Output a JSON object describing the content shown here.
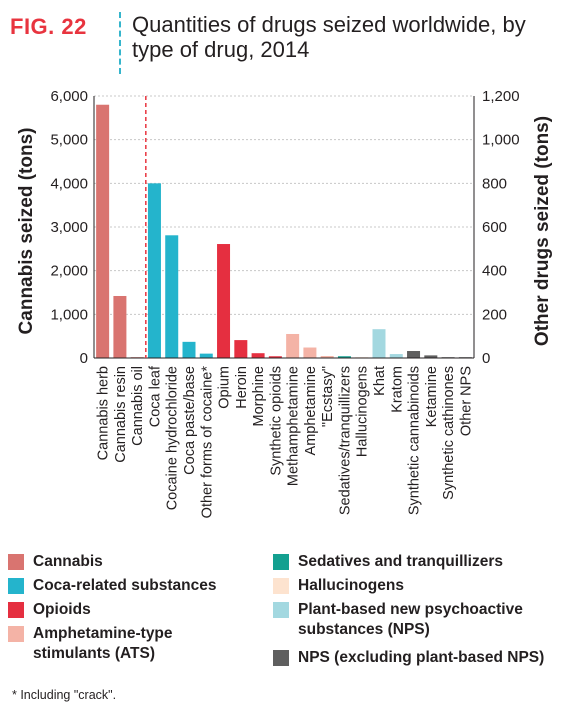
{
  "figure": {
    "label": "FIG. 22",
    "title": "Quantities of drugs seized worldwide, by type of drug, 2014"
  },
  "colors": {
    "Cannabis": "#d97470",
    "Coca-related substances": "#24b4cc",
    "Opioids": "#e52f40",
    "Amphetamine-type stimulants (ATS)": "#f4b3a6",
    "Sedatives and tranquillizers": "#13a090",
    "Hallucinogens": "#fde3cf",
    "Plant-based new psychoactive substances (NPS)": "#a3d8e0",
    "NPS (excluding plant-based NPS)": "#5f5f5f"
  },
  "legend": [
    {
      "label": "Cannabis",
      "group": "Cannabis"
    },
    {
      "label": "Coca-related substances",
      "group": "Coca-related substances"
    },
    {
      "label": "Opioids",
      "group": "Opioids"
    },
    {
      "label": "Amphetamine-type stimulants (ATS)",
      "group": "Amphetamine-type stimulants (ATS)"
    },
    {
      "label": "Sedatives and tranquillizers",
      "group": "Sedatives and tranquillizers"
    },
    {
      "label": "Hallucinogens",
      "group": "Hallucinogens"
    },
    {
      "label": "Plant-based new psychoactive substances (NPS)",
      "group": "Plant-based new psychoactive substances (NPS)"
    },
    {
      "label": "NPS (excluding plant-based NPS)",
      "group": "NPS (excluding plant-based NPS)"
    }
  ],
  "footnote": "* Including \"crack\".",
  "chart_data": {
    "type": "bar",
    "ylabel_left": "Cannabis seized (tons)",
    "ylabel_right": "Other drugs seized (tons)",
    "ylim_left": [
      0,
      6000
    ],
    "ylim_right": [
      0,
      1200
    ],
    "yticks_left": [
      "0",
      "1,000",
      "2,000",
      "3,000",
      "4,000",
      "5,000",
      "6,000"
    ],
    "yticks_right": [
      "0",
      "200",
      "400",
      "600",
      "800",
      "1,000",
      "1,200"
    ],
    "grid": true,
    "axis_split_after": "Cannabis oil",
    "categories": [
      {
        "name": "Cannabis herb",
        "value": 5800,
        "axis": "left",
        "group": "Cannabis"
      },
      {
        "name": "Cannabis resin",
        "value": 1420,
        "axis": "left",
        "group": "Cannabis"
      },
      {
        "name": "Cannabis oil",
        "value": 3,
        "axis": "left",
        "group": "Cannabis"
      },
      {
        "name": "Coca leaf",
        "value": 800,
        "axis": "right",
        "group": "Coca-related substances"
      },
      {
        "name": "Cocaine hydrochloride",
        "value": 562,
        "axis": "right",
        "group": "Coca-related substances"
      },
      {
        "name": "Coca paste/base",
        "value": 74,
        "axis": "right",
        "group": "Coca-related substances"
      },
      {
        "name": "Other forms of cocaine*",
        "value": 20,
        "axis": "right",
        "group": "Coca-related substances"
      },
      {
        "name": "Opium",
        "value": 522,
        "axis": "right",
        "group": "Opioids"
      },
      {
        "name": "Heroin",
        "value": 82,
        "axis": "right",
        "group": "Opioids"
      },
      {
        "name": "Morphine",
        "value": 22,
        "axis": "right",
        "group": "Opioids"
      },
      {
        "name": "Synthetic opioids",
        "value": 8,
        "axis": "right",
        "group": "Opioids"
      },
      {
        "name": "Methamphetamine",
        "value": 110,
        "axis": "right",
        "group": "Amphetamine-type stimulants (ATS)"
      },
      {
        "name": "Amphetamine",
        "value": 48,
        "axis": "right",
        "group": "Amphetamine-type stimulants (ATS)"
      },
      {
        "name": "\"Ecstasy\"",
        "value": 9,
        "axis": "right",
        "group": "Amphetamine-type stimulants (ATS)"
      },
      {
        "name": "Sedatives/tranquillizers",
        "value": 8,
        "axis": "right",
        "group": "Sedatives and tranquillizers"
      },
      {
        "name": "Hallucinogens",
        "value": 2,
        "axis": "right",
        "group": "Hallucinogens"
      },
      {
        "name": "Khat",
        "value": 132,
        "axis": "right",
        "group": "Plant-based new psychoactive substances (NPS)"
      },
      {
        "name": "Kratom",
        "value": 18,
        "axis": "right",
        "group": "Plant-based new psychoactive substances (NPS)"
      },
      {
        "name": "Synthetic cannabinoids",
        "value": 32,
        "axis": "right",
        "group": "NPS (excluding plant-based NPS)"
      },
      {
        "name": "Ketamine",
        "value": 12,
        "axis": "right",
        "group": "NPS (excluding plant-based NPS)"
      },
      {
        "name": "Synthetic cathinones",
        "value": 3,
        "axis": "right",
        "group": "NPS (excluding plant-based NPS)"
      },
      {
        "name": "Other NPS",
        "value": 2,
        "axis": "right",
        "group": "NPS (excluding plant-based NPS)"
      }
    ]
  }
}
